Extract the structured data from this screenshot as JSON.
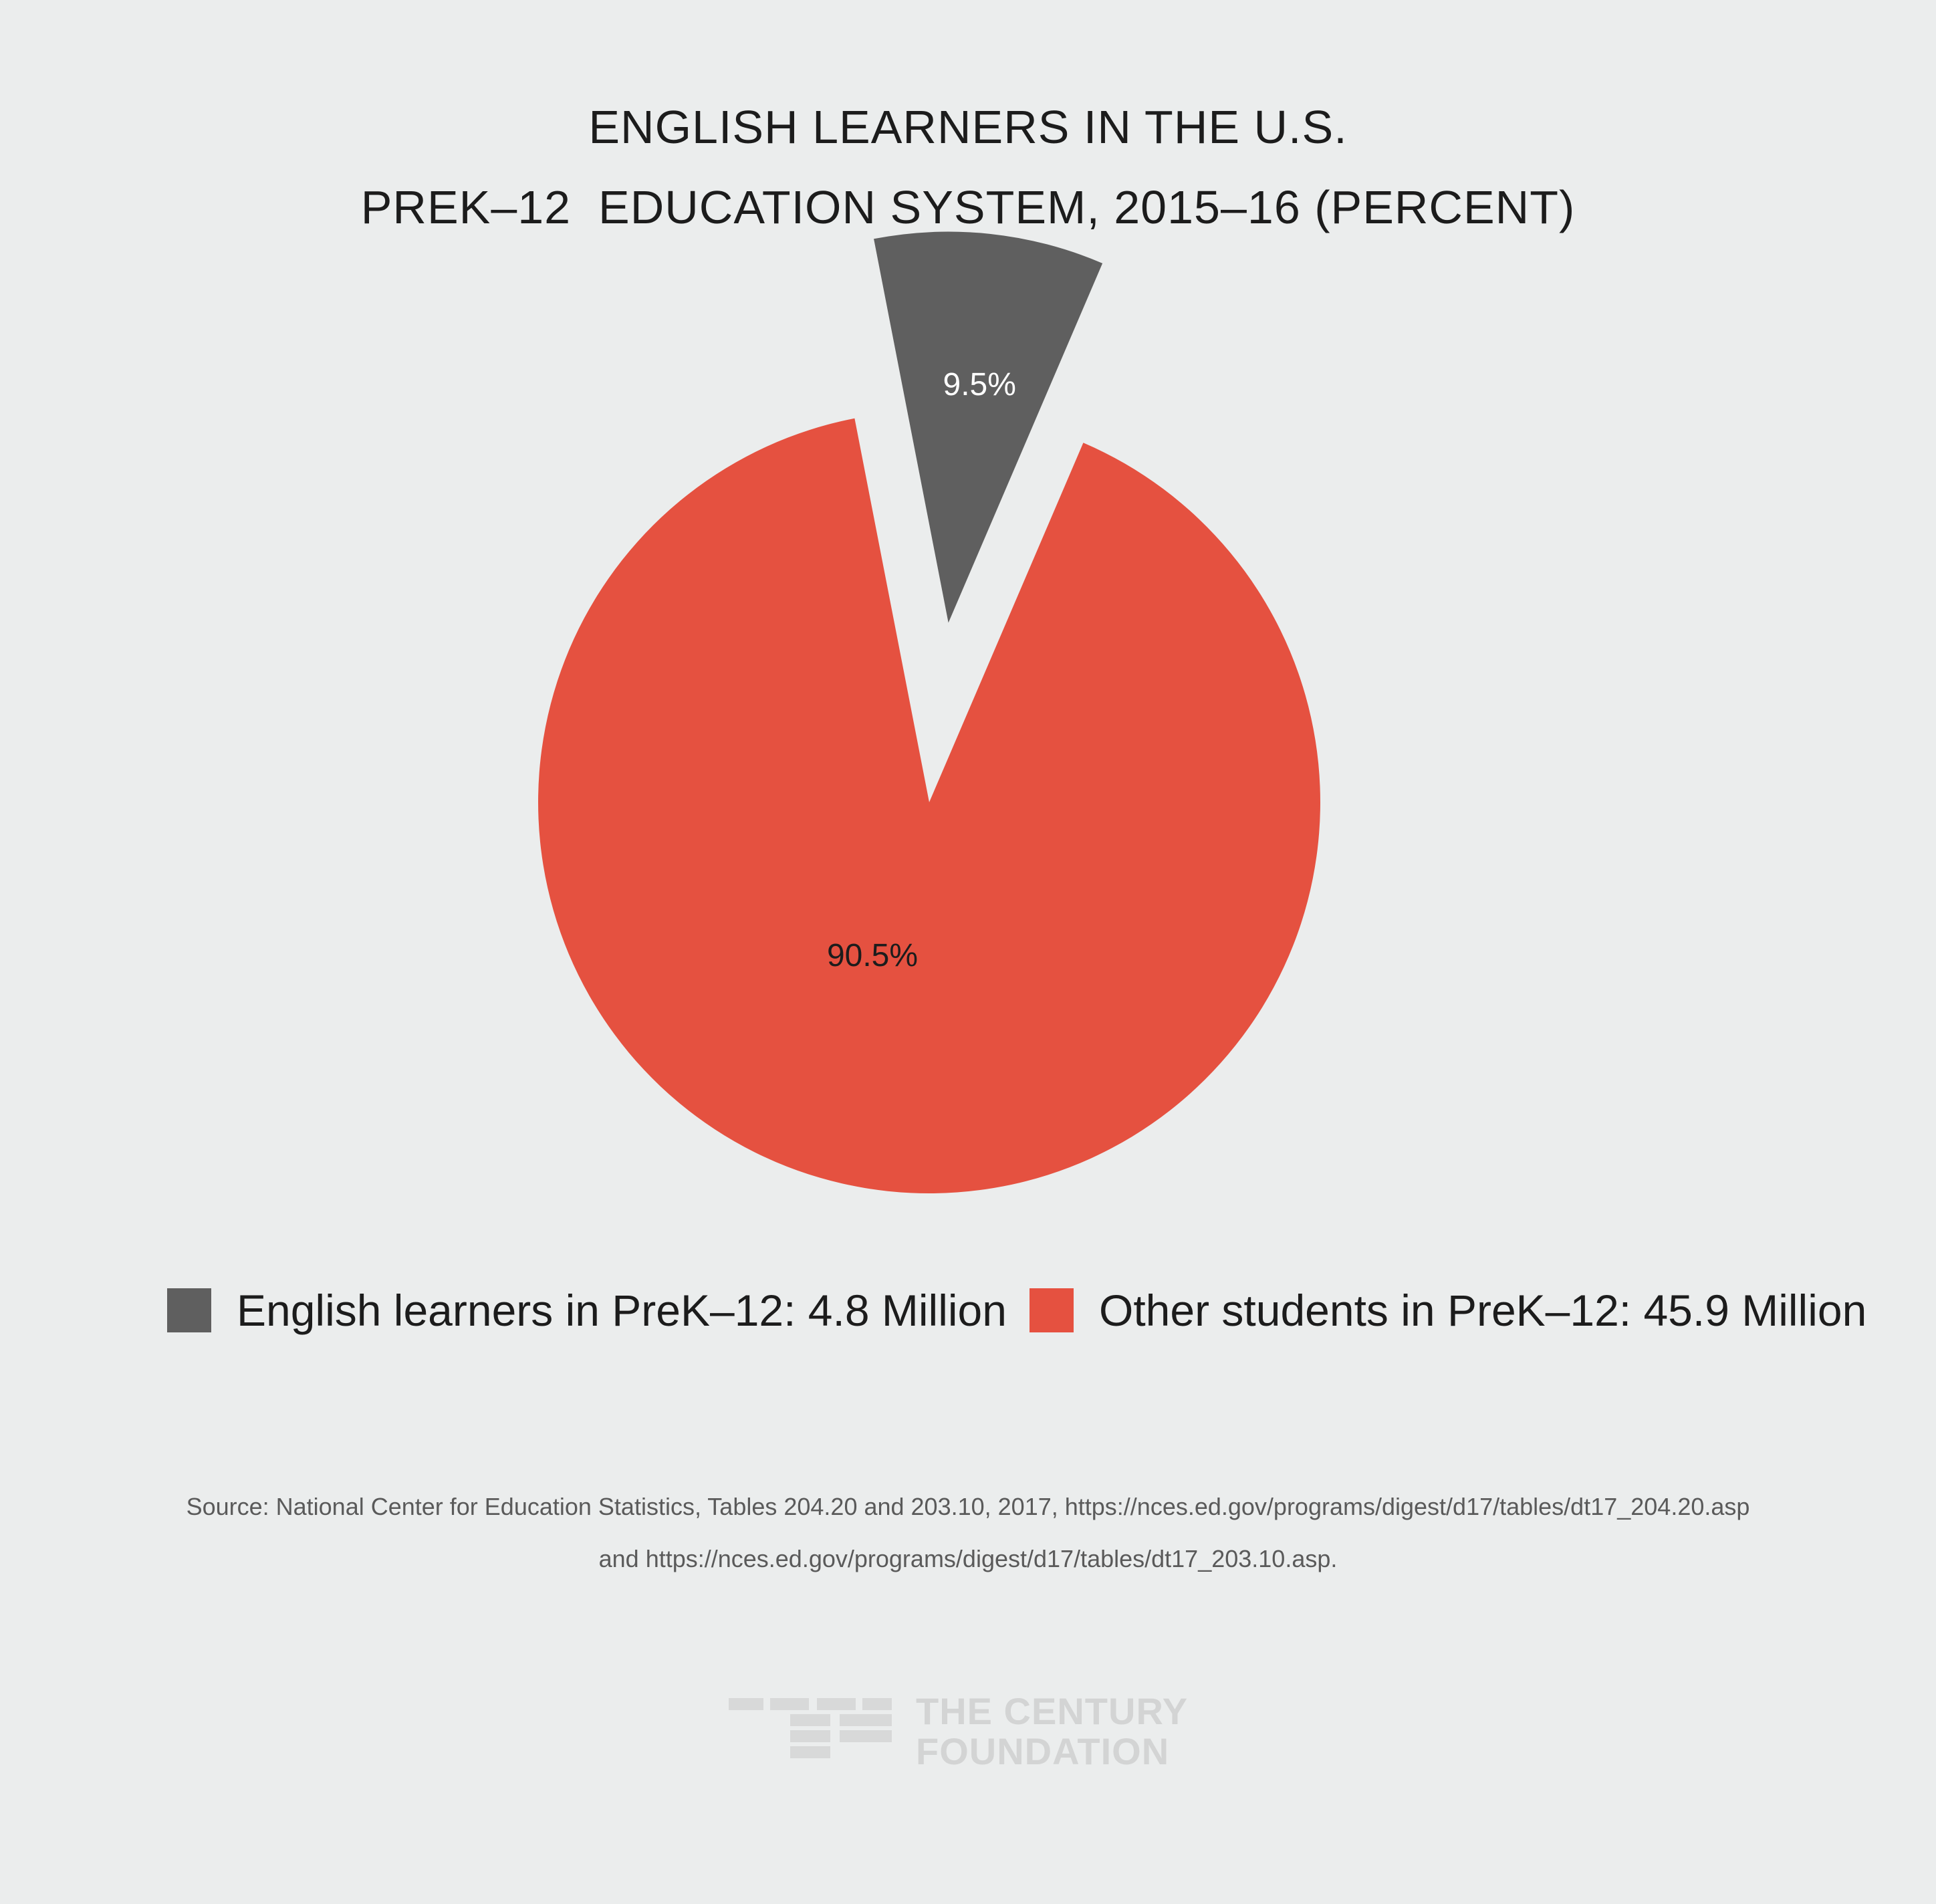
{
  "title_lines": [
    "ENGLISH LEARNERS IN THE U.S.",
    "PREK–12  EDUCATION SYSTEM, 2015–16 (PERCENT)"
  ],
  "chart_data": {
    "type": "pie",
    "slices": [
      {
        "label": "English learners in PreK–12: 4.8 Million",
        "value": 9.5,
        "display": "9.5%",
        "color": "#5f5f5f",
        "exploded": true
      },
      {
        "label": "Other students in PreK–12: 45.9 Million",
        "value": 90.5,
        "display": "90.5%",
        "color": "#e55140",
        "exploded": false
      }
    ],
    "legend_position": "bottom"
  },
  "source_lines": [
    "Source: National Center for Education Statistics, Tables 204.20 and 203.10, 2017, https://nces.ed.gov/programs/digest/d17/tables/dt17_204.20.asp",
    "and https://nces.ed.gov/programs/digest/d17/tables/dt17_203.10.asp."
  ],
  "logo": {
    "line1": "THE CENTURY",
    "line2": "FOUNDATION"
  }
}
